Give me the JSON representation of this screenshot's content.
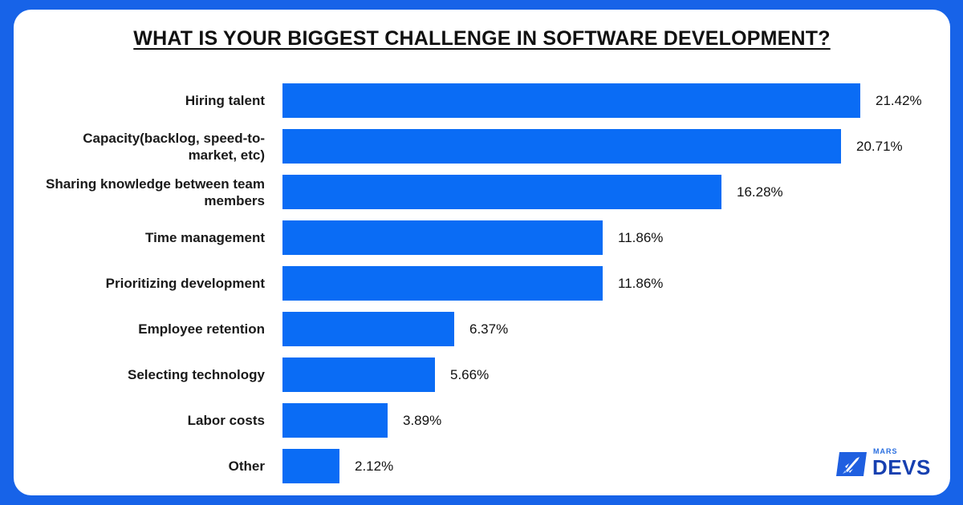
{
  "chart_data": {
    "type": "bar",
    "orientation": "horizontal",
    "title": "WHAT IS YOUR BIGGEST CHALLENGE IN SOFTWARE DEVELOPMENT?",
    "categories": [
      "Hiring talent",
      "Capacity(backlog, speed-to-market, etc)",
      "Sharing knowledge between team members",
      "Time management",
      "Prioritizing development",
      "Employee retention",
      "Selecting technology",
      "Labor costs",
      "Other"
    ],
    "values": [
      21.42,
      20.71,
      16.28,
      11.86,
      11.86,
      6.37,
      5.66,
      3.89,
      2.12
    ],
    "value_labels": [
      "21.42%",
      "20.71%",
      "16.28%",
      "11.86%",
      "11.86%",
      "6.37%",
      "5.66%",
      "3.89%",
      "2.12%"
    ],
    "xlim": [
      0,
      21.42
    ],
    "bar_color": "#0a6cf5",
    "grid": false,
    "legend": "none"
  },
  "logo": {
    "small_text": "MARS",
    "big_text": "DEVS",
    "icon": "rocket-icon"
  },
  "colors": {
    "background": "#1763e8",
    "card": "#ffffff",
    "bar": "#0a6cf5"
  }
}
